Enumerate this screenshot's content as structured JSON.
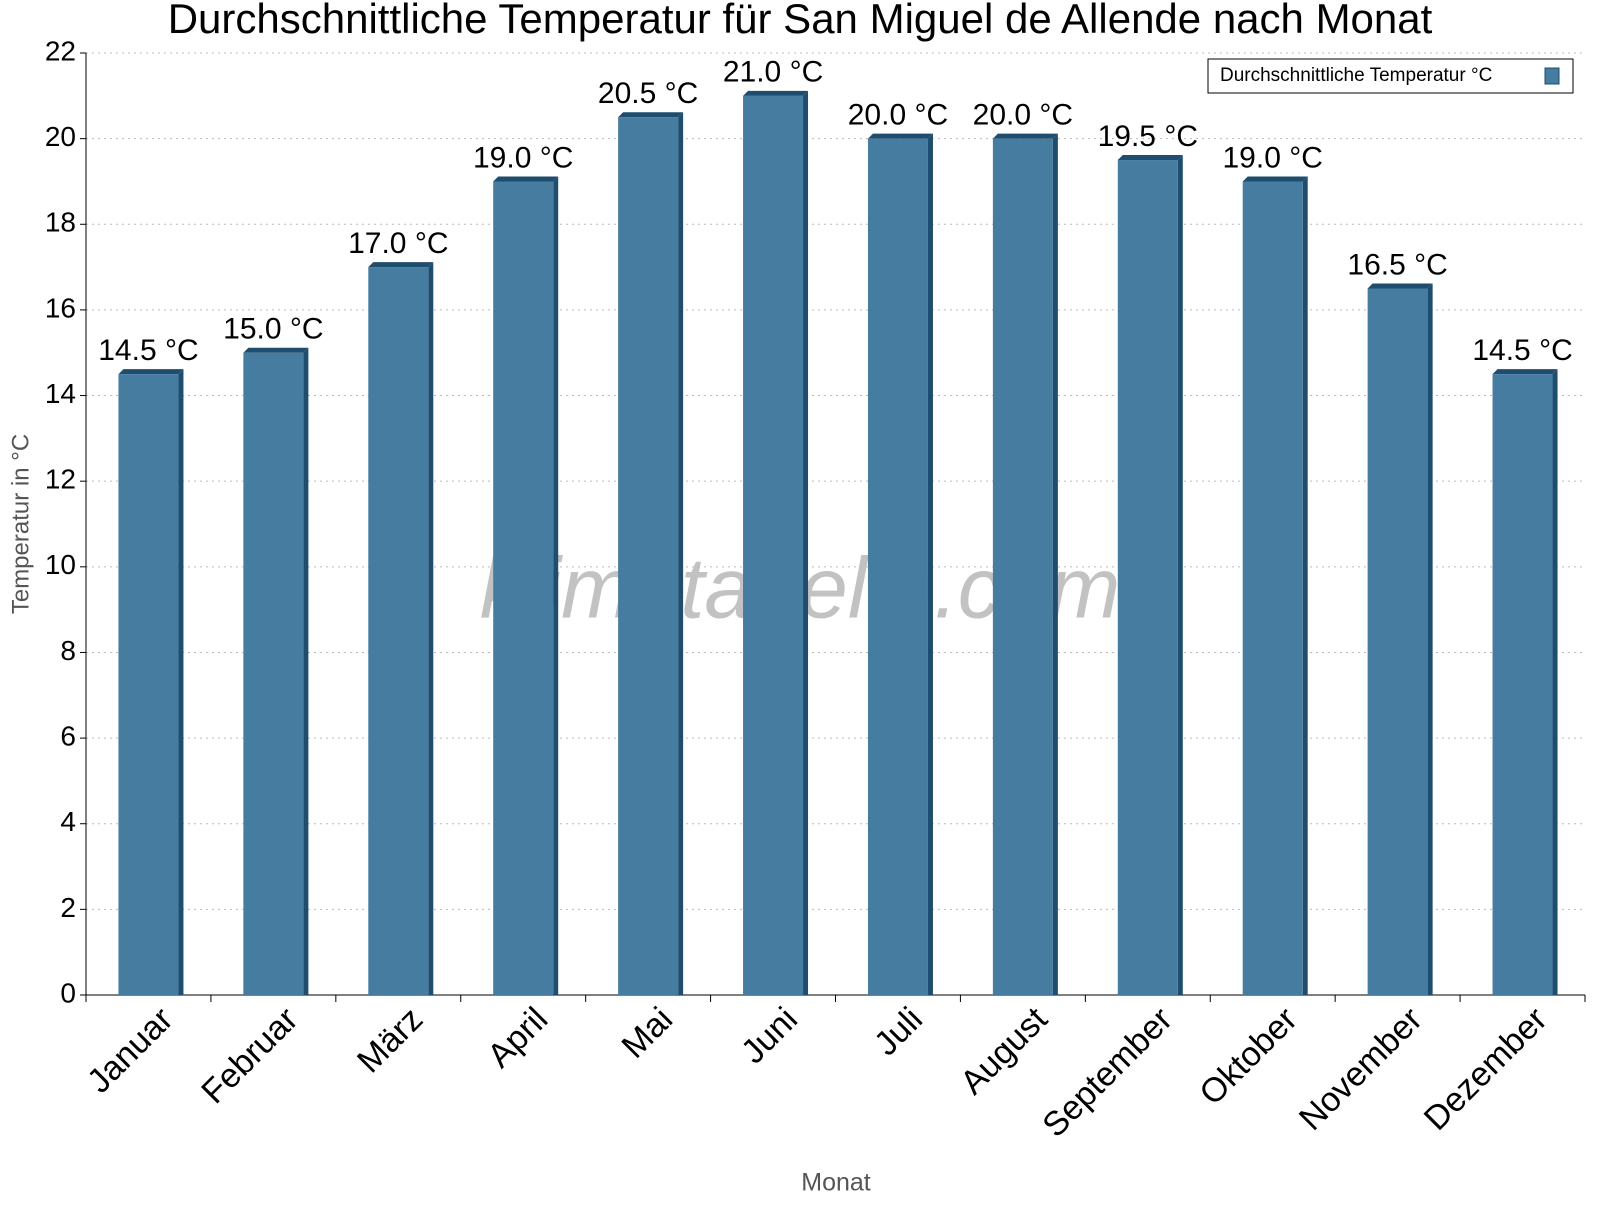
{
  "chart_data": {
    "type": "bar",
    "title": "Durchschnittliche Temperatur für San Miguel de Allende nach Monat",
    "xlabel": "Monat",
    "ylabel": "Temperatur in °C",
    "watermark": "klimatabelle.com",
    "categories": [
      "Januar",
      "Februar",
      "März",
      "April",
      "Mai",
      "Juni",
      "Juli",
      "August",
      "September",
      "Oktober",
      "November",
      "Dezember"
    ],
    "series": [
      {
        "name": "Durchschnittliche Temperatur °C",
        "color": "#467ca0",
        "values": [
          14.5,
          15.0,
          17.0,
          19.0,
          20.5,
          21.0,
          20.0,
          20.0,
          19.5,
          19.0,
          16.5,
          14.5
        ],
        "value_labels": [
          "14.5 °C",
          "15.0 °C",
          "17.0 °C",
          "19.0 °C",
          "20.5 °C",
          "21.0 °C",
          "20.0 °C",
          "20.0 °C",
          "19.5 °C",
          "19.0 °C",
          "16.5 °C",
          "14.5 °C"
        ]
      }
    ],
    "ylim": [
      0,
      22
    ],
    "yticks": [
      0,
      2,
      4,
      6,
      8,
      10,
      12,
      14,
      16,
      18,
      20,
      22
    ],
    "grid": true,
    "legend": "upper right"
  }
}
